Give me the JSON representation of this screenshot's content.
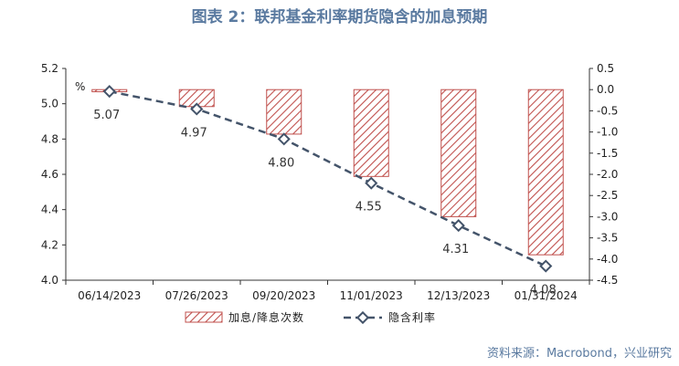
{
  "title": "图表 2：联邦基金利率期货隐含的加息预期",
  "source": "资料来源：Macrobond，兴业研究",
  "chart_data": {
    "type": "bar+line",
    "categories": [
      "06/14/2023",
      "07/26/2023",
      "09/20/2023",
      "11/01/2023",
      "12/13/2023",
      "01/31/2024"
    ],
    "unit_label": "%",
    "y_left": {
      "min": 4.0,
      "max": 5.2,
      "ticks": [
        "4.0",
        "4.2",
        "4.4",
        "4.6",
        "4.8",
        "5.0",
        "5.2"
      ]
    },
    "y_right": {
      "min": -4.5,
      "max": 0.5,
      "ticks": [
        "0.5",
        "0.0",
        "-0.5",
        "-1.0",
        "-1.5",
        "-2.0",
        "-2.5",
        "-3.0",
        "-3.5",
        "-4.0",
        "-4.5"
      ]
    },
    "series": [
      {
        "name": "加息/降息次数",
        "type": "bar",
        "axis": "right",
        "color": "#c0504d",
        "values": [
          -0.05,
          -0.4,
          -1.05,
          -2.05,
          -3.0,
          -3.9
        ]
      },
      {
        "name": "隐含利率",
        "type": "line",
        "axis": "left",
        "color": "#44546a",
        "values": [
          5.07,
          4.97,
          4.8,
          4.55,
          4.31,
          4.08
        ],
        "labels": [
          "5.07",
          "4.97",
          "4.80",
          "4.55",
          "4.31",
          "4.08"
        ]
      }
    ],
    "legend_position": "bottom"
  }
}
